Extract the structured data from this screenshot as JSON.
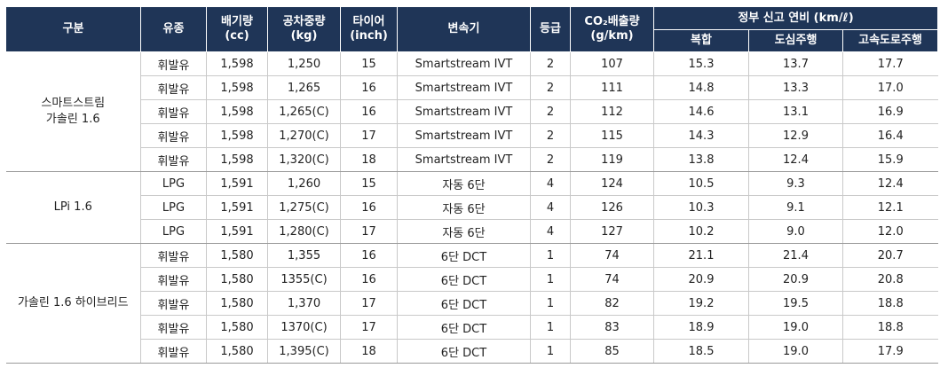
{
  "headers": {
    "category": "구분",
    "fuel": "유종",
    "displacement": [
      "배기량",
      "(cc)"
    ],
    "weight": [
      "공차중량",
      "(kg)"
    ],
    "tire": [
      "타이어",
      "(inch)"
    ],
    "transmission": "변속기",
    "grade": "등급",
    "co2": [
      "CO₂배출량",
      "(g/km)"
    ],
    "efficiency": "정부 신고 연비 (km/ℓ)",
    "combined": "복합",
    "city": "도심주행",
    "highway": "고속도로주행"
  },
  "groups": [
    {
      "name": [
        "스마트스트림",
        "가솔린 1.6"
      ],
      "rows": [
        [
          "휘발유",
          "1,598",
          "1,250",
          "15",
          "Smartstream IVT",
          "2",
          "107",
          "15.3",
          "13.7",
          "17.7"
        ],
        [
          "휘발유",
          "1,598",
          "1,265",
          "16",
          "Smartstream IVT",
          "2",
          "111",
          "14.8",
          "13.3",
          "17.0"
        ],
        [
          "휘발유",
          "1,598",
          "1,265(C)",
          "16",
          "Smartstream IVT",
          "2",
          "112",
          "14.6",
          "13.1",
          "16.9"
        ],
        [
          "휘발유",
          "1,598",
          "1,270(C)",
          "17",
          "Smartstream IVT",
          "2",
          "115",
          "14.3",
          "12.9",
          "16.4"
        ],
        [
          "휘발유",
          "1,598",
          "1,320(C)",
          "18",
          "Smartstream IVT",
          "2",
          "119",
          "13.8",
          "12.4",
          "15.9"
        ]
      ]
    },
    {
      "name": [
        "LPi 1.6"
      ],
      "rows": [
        [
          "LPG",
          "1,591",
          "1,260",
          "15",
          "자동 6단",
          "4",
          "124",
          "10.5",
          "9.3",
          "12.4"
        ],
        [
          "LPG",
          "1,591",
          "1,275(C)",
          "16",
          "자동 6단",
          "4",
          "126",
          "10.3",
          "9.1",
          "12.1"
        ],
        [
          "LPG",
          "1,591",
          "1,280(C)",
          "17",
          "자동 6단",
          "4",
          "127",
          "10.2",
          "9.0",
          "12.0"
        ]
      ]
    },
    {
      "name": [
        "가솔린 1.6 하이브리드"
      ],
      "rows": [
        [
          "휘발유",
          "1,580",
          "1,355",
          "16",
          "6단 DCT",
          "1",
          "74",
          "21.1",
          "21.4",
          "20.7"
        ],
        [
          "휘발유",
          "1,580",
          "1355(C)",
          "16",
          "6단 DCT",
          "1",
          "74",
          "20.9",
          "20.9",
          "20.8"
        ],
        [
          "휘발유",
          "1,580",
          "1,370",
          "17",
          "6단 DCT",
          "1",
          "82",
          "19.2",
          "19.5",
          "18.8"
        ],
        [
          "휘발유",
          "1,580",
          "1370(C)",
          "17",
          "6단 DCT",
          "1",
          "83",
          "18.9",
          "19.0",
          "18.8"
        ],
        [
          "휘발유",
          "1,580",
          "1,395(C)",
          "18",
          "6단 DCT",
          "1",
          "85",
          "18.5",
          "19.0",
          "17.9"
        ]
      ]
    }
  ]
}
